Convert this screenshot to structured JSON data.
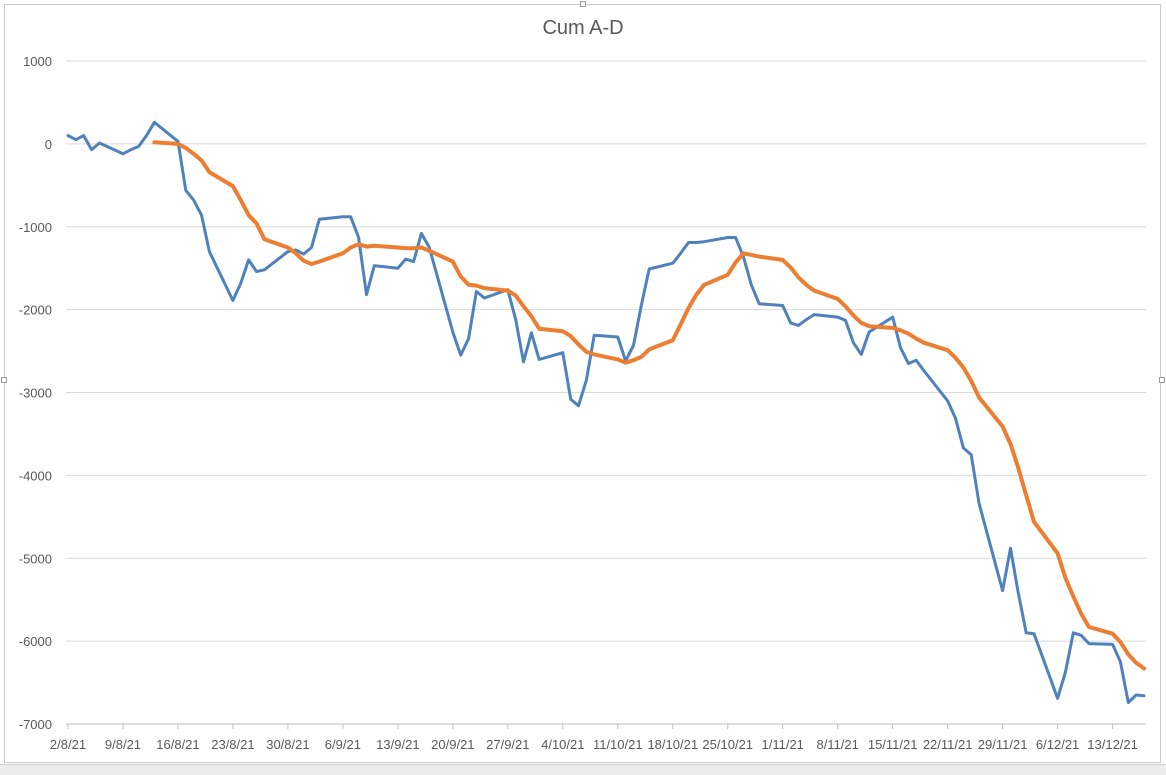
{
  "chart_data": {
    "type": "line",
    "title": "Cum A-D",
    "xlabel": "",
    "ylabel": "",
    "ylim": [
      -7000,
      1000
    ],
    "yticks": [
      1000,
      0,
      -1000,
      -2000,
      -3000,
      -4000,
      -5000,
      -6000,
      -7000
    ],
    "xlim": [
      "2021-08-02",
      "2021-12-17"
    ],
    "xticks": [
      {
        "date": "2021-08-02",
        "label": "2/8/21"
      },
      {
        "date": "2021-08-09",
        "label": "9/8/21"
      },
      {
        "date": "2021-08-16",
        "label": "16/8/21"
      },
      {
        "date": "2021-08-23",
        "label": "23/8/21"
      },
      {
        "date": "2021-08-30",
        "label": "30/8/21"
      },
      {
        "date": "2021-09-06",
        "label": "6/9/21"
      },
      {
        "date": "2021-09-13",
        "label": "13/9/21"
      },
      {
        "date": "2021-09-20",
        "label": "20/9/21"
      },
      {
        "date": "2021-09-27",
        "label": "27/9/21"
      },
      {
        "date": "2021-10-04",
        "label": "4/10/21"
      },
      {
        "date": "2021-10-11",
        "label": "11/10/21"
      },
      {
        "date": "2021-10-18",
        "label": "18/10/21"
      },
      {
        "date": "2021-10-25",
        "label": "25/10/21"
      },
      {
        "date": "2021-11-01",
        "label": "1/11/21"
      },
      {
        "date": "2021-11-08",
        "label": "8/11/21"
      },
      {
        "date": "2021-11-15",
        "label": "15/11/21"
      },
      {
        "date": "2021-11-22",
        "label": "22/11/21"
      },
      {
        "date": "2021-11-29",
        "label": "29/11/21"
      },
      {
        "date": "2021-12-06",
        "label": "6/12/21"
      },
      {
        "date": "2021-12-13",
        "label": "13/12/21"
      }
    ],
    "grid": true,
    "legend": "none",
    "series": [
      {
        "color": "#4f81bd",
        "points": [
          [
            "2021-08-02",
            100
          ],
          [
            "2021-08-03",
            50
          ],
          [
            "2021-08-04",
            100
          ],
          [
            "2021-08-05",
            -70
          ],
          [
            "2021-08-06",
            10
          ],
          [
            "2021-08-09",
            -120
          ],
          [
            "2021-08-10",
            -70
          ],
          [
            "2021-08-11",
            -30
          ],
          [
            "2021-08-12",
            100
          ],
          [
            "2021-08-13",
            260
          ],
          [
            "2021-08-16",
            30
          ],
          [
            "2021-08-17",
            -560
          ],
          [
            "2021-08-18",
            -680
          ],
          [
            "2021-08-19",
            -860
          ],
          [
            "2021-08-20",
            -1300
          ],
          [
            "2021-08-23",
            -1890
          ],
          [
            "2021-08-24",
            -1680
          ],
          [
            "2021-08-25",
            -1400
          ],
          [
            "2021-08-26",
            -1540
          ],
          [
            "2021-08-27",
            -1520
          ],
          [
            "2021-08-30",
            -1300
          ],
          [
            "2021-08-31",
            -1280
          ],
          [
            "2021-09-01",
            -1330
          ],
          [
            "2021-09-02",
            -1250
          ],
          [
            "2021-09-03",
            -910
          ],
          [
            "2021-09-06",
            -880
          ],
          [
            "2021-09-07",
            -880
          ],
          [
            "2021-09-08",
            -1130
          ],
          [
            "2021-09-09",
            -1820
          ],
          [
            "2021-09-10",
            -1470
          ],
          [
            "2021-09-13",
            -1500
          ],
          [
            "2021-09-14",
            -1390
          ],
          [
            "2021-09-15",
            -1420
          ],
          [
            "2021-09-16",
            -1080
          ],
          [
            "2021-09-17",
            -1250
          ],
          [
            "2021-09-20",
            -2270
          ],
          [
            "2021-09-21",
            -2550
          ],
          [
            "2021-09-22",
            -2350
          ],
          [
            "2021-09-23",
            -1780
          ],
          [
            "2021-09-24",
            -1860
          ],
          [
            "2021-09-27",
            -1760
          ],
          [
            "2021-09-28",
            -2120
          ],
          [
            "2021-09-29",
            -2630
          ],
          [
            "2021-09-30",
            -2280
          ],
          [
            "2021-10-01",
            -2600
          ],
          [
            "2021-10-04",
            -2520
          ],
          [
            "2021-10-05",
            -3080
          ],
          [
            "2021-10-06",
            -3160
          ],
          [
            "2021-10-07",
            -2850
          ],
          [
            "2021-10-08",
            -2310
          ],
          [
            "2021-10-11",
            -2330
          ],
          [
            "2021-10-12",
            -2620
          ],
          [
            "2021-10-13",
            -2430
          ],
          [
            "2021-10-14",
            -1950
          ],
          [
            "2021-10-15",
            -1510
          ],
          [
            "2021-10-18",
            -1440
          ],
          [
            "2021-10-19",
            -1320
          ],
          [
            "2021-10-20",
            -1190
          ],
          [
            "2021-10-21",
            -1190
          ],
          [
            "2021-10-22",
            -1180
          ],
          [
            "2021-10-25",
            -1130
          ],
          [
            "2021-10-26",
            -1130
          ],
          [
            "2021-10-27",
            -1360
          ],
          [
            "2021-10-28",
            -1700
          ],
          [
            "2021-10-29",
            -1930
          ],
          [
            "2021-11-01",
            -1950
          ],
          [
            "2021-11-02",
            -2160
          ],
          [
            "2021-11-03",
            -2190
          ],
          [
            "2021-11-04",
            -2120
          ],
          [
            "2021-11-05",
            -2060
          ],
          [
            "2021-11-08",
            -2090
          ],
          [
            "2021-11-09",
            -2130
          ],
          [
            "2021-11-10",
            -2400
          ],
          [
            "2021-11-11",
            -2540
          ],
          [
            "2021-11-12",
            -2270
          ],
          [
            "2021-11-15",
            -2090
          ],
          [
            "2021-11-16",
            -2460
          ],
          [
            "2021-11-17",
            -2650
          ],
          [
            "2021-11-18",
            -2610
          ],
          [
            "2021-11-19",
            -2740
          ],
          [
            "2021-11-22",
            -3100
          ],
          [
            "2021-11-23",
            -3310
          ],
          [
            "2021-11-24",
            -3670
          ],
          [
            "2021-11-25",
            -3750
          ],
          [
            "2021-11-26",
            -4340
          ],
          [
            "2021-11-29",
            -5390
          ],
          [
            "2021-11-30",
            -4880
          ],
          [
            "2021-12-01",
            -5420
          ],
          [
            "2021-12-02",
            -5900
          ],
          [
            "2021-12-03",
            -5910
          ],
          [
            "2021-12-06",
            -6690
          ],
          [
            "2021-12-07",
            -6370
          ],
          [
            "2021-12-08",
            -5900
          ],
          [
            "2021-12-09",
            -5930
          ],
          [
            "2021-12-10",
            -6030
          ],
          [
            "2021-12-13",
            -6040
          ],
          [
            "2021-12-14",
            -6250
          ],
          [
            "2021-12-15",
            -6740
          ],
          [
            "2021-12-16",
            -6650
          ],
          [
            "2021-12-17",
            -6660
          ]
        ]
      },
      {
        "color": "#ed7d31",
        "points": [
          [
            "2021-08-13",
            20
          ],
          [
            "2021-08-16",
            0
          ],
          [
            "2021-08-17",
            -50
          ],
          [
            "2021-08-18",
            -120
          ],
          [
            "2021-08-19",
            -200
          ],
          [
            "2021-08-20",
            -340
          ],
          [
            "2021-08-23",
            -510
          ],
          [
            "2021-08-24",
            -680
          ],
          [
            "2021-08-25",
            -860
          ],
          [
            "2021-08-26",
            -960
          ],
          [
            "2021-08-27",
            -1150
          ],
          [
            "2021-08-30",
            -1250
          ],
          [
            "2021-08-31",
            -1320
          ],
          [
            "2021-09-01",
            -1410
          ],
          [
            "2021-09-02",
            -1450
          ],
          [
            "2021-09-03",
            -1420
          ],
          [
            "2021-09-06",
            -1320
          ],
          [
            "2021-09-07",
            -1250
          ],
          [
            "2021-09-08",
            -1210
          ],
          [
            "2021-09-09",
            -1240
          ],
          [
            "2021-09-10",
            -1230
          ],
          [
            "2021-09-13",
            -1250
          ],
          [
            "2021-09-14",
            -1260
          ],
          [
            "2021-09-15",
            -1260
          ],
          [
            "2021-09-16",
            -1250
          ],
          [
            "2021-09-17",
            -1290
          ],
          [
            "2021-09-20",
            -1420
          ],
          [
            "2021-09-21",
            -1600
          ],
          [
            "2021-09-22",
            -1700
          ],
          [
            "2021-09-23",
            -1710
          ],
          [
            "2021-09-24",
            -1740
          ],
          [
            "2021-09-27",
            -1770
          ],
          [
            "2021-09-28",
            -1830
          ],
          [
            "2021-09-29",
            -1960
          ],
          [
            "2021-09-30",
            -2080
          ],
          [
            "2021-10-01",
            -2230
          ],
          [
            "2021-10-04",
            -2260
          ],
          [
            "2021-10-05",
            -2320
          ],
          [
            "2021-10-06",
            -2420
          ],
          [
            "2021-10-07",
            -2510
          ],
          [
            "2021-10-08",
            -2540
          ],
          [
            "2021-10-11",
            -2600
          ],
          [
            "2021-10-12",
            -2640
          ],
          [
            "2021-10-13",
            -2610
          ],
          [
            "2021-10-14",
            -2570
          ],
          [
            "2021-10-15",
            -2480
          ],
          [
            "2021-10-18",
            -2370
          ],
          [
            "2021-10-19",
            -2180
          ],
          [
            "2021-10-20",
            -1980
          ],
          [
            "2021-10-21",
            -1820
          ],
          [
            "2021-10-22",
            -1700
          ],
          [
            "2021-10-25",
            -1580
          ],
          [
            "2021-10-26",
            -1430
          ],
          [
            "2021-10-27",
            -1320
          ],
          [
            "2021-10-28",
            -1340
          ],
          [
            "2021-10-29",
            -1360
          ],
          [
            "2021-11-01",
            -1400
          ],
          [
            "2021-11-02",
            -1490
          ],
          [
            "2021-11-03",
            -1610
          ],
          [
            "2021-11-04",
            -1700
          ],
          [
            "2021-11-05",
            -1770
          ],
          [
            "2021-11-08",
            -1870
          ],
          [
            "2021-11-09",
            -1960
          ],
          [
            "2021-11-10",
            -2070
          ],
          [
            "2021-11-11",
            -2160
          ],
          [
            "2021-11-12",
            -2200
          ],
          [
            "2021-11-15",
            -2220
          ],
          [
            "2021-11-16",
            -2250
          ],
          [
            "2021-11-17",
            -2290
          ],
          [
            "2021-11-18",
            -2350
          ],
          [
            "2021-11-19",
            -2400
          ],
          [
            "2021-11-22",
            -2490
          ],
          [
            "2021-11-23",
            -2580
          ],
          [
            "2021-11-24",
            -2700
          ],
          [
            "2021-11-25",
            -2860
          ],
          [
            "2021-11-26",
            -3060
          ],
          [
            "2021-11-29",
            -3410
          ],
          [
            "2021-11-30",
            -3620
          ],
          [
            "2021-12-01",
            -3910
          ],
          [
            "2021-12-02",
            -4240
          ],
          [
            "2021-12-03",
            -4560
          ],
          [
            "2021-12-06",
            -4940
          ],
          [
            "2021-12-07",
            -5240
          ],
          [
            "2021-12-08",
            -5460
          ],
          [
            "2021-12-09",
            -5670
          ],
          [
            "2021-12-10",
            -5830
          ],
          [
            "2021-12-13",
            -5910
          ],
          [
            "2021-12-14",
            -6010
          ],
          [
            "2021-12-15",
            -6160
          ],
          [
            "2021-12-16",
            -6260
          ],
          [
            "2021-12-17",
            -6330
          ]
        ]
      }
    ]
  }
}
